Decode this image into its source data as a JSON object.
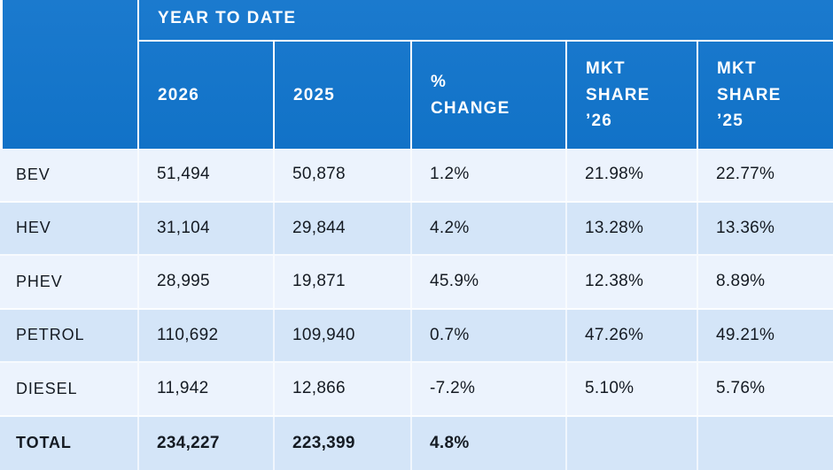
{
  "banner": "YEAR TO DATE",
  "columns": {
    "year_2026": "2026",
    "year_2025": "2025",
    "pct_change": "%\nCHANGE",
    "mkt_share_26": "MKT\nSHARE\n’26",
    "mkt_share_25": "MKT\nSHARE\n’25"
  },
  "rows": [
    {
      "label": "BEV",
      "y26": "51,494",
      "y25": "50,878",
      "chg": "1.2%",
      "s26": "21.98%",
      "s25": "22.77%"
    },
    {
      "label": "HEV",
      "y26": "31,104",
      "y25": "29,844",
      "chg": "4.2%",
      "s26": "13.28%",
      "s25": "13.36%"
    },
    {
      "label": "PHEV",
      "y26": "28,995",
      "y25": "19,871",
      "chg": "45.9%",
      "s26": "12.38%",
      "s25": "8.89%"
    },
    {
      "label": "PETROL",
      "y26": "110,692",
      "y25": "109,940",
      "chg": "0.7%",
      "s26": "47.26%",
      "s25": "49.21%"
    },
    {
      "label": "DIESEL",
      "y26": "11,942",
      "y25": "12,866",
      "chg": "-7.2%",
      "s26": "5.10%",
      "s25": "5.76%"
    },
    {
      "label": "TOTAL",
      "y26": "234,227",
      "y25": "223,399",
      "chg": "4.8%",
      "s26": "",
      "s25": ""
    }
  ],
  "colors": {
    "header_blue": "#1273c8",
    "row_light": "#ecf3fd",
    "row_mid": "#d4e5f8",
    "text_dark": "#151b23"
  }
}
